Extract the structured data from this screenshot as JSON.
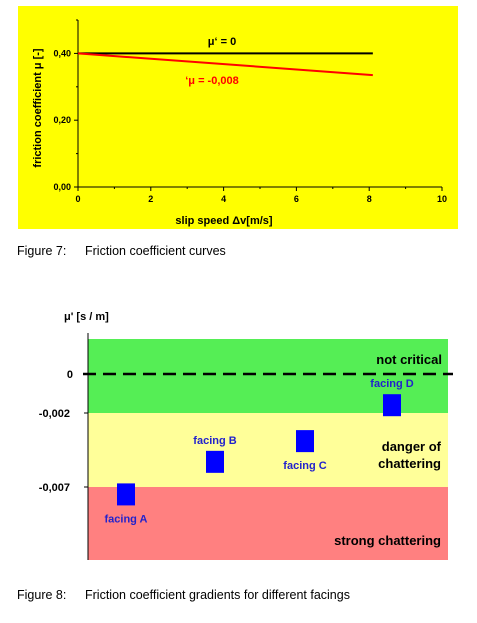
{
  "chart_data": [
    {
      "type": "line",
      "title": "",
      "xlabel": "slip speed Δv[m/s]",
      "ylabel": "friction coefficient μ [-]",
      "xlim": [
        0,
        10
      ],
      "ylim": [
        0,
        0.5
      ],
      "x_ticks": [
        "0",
        "2",
        "4",
        "6",
        "8",
        "10"
      ],
      "y_ticks": [
        "0,00",
        "0,20",
        "0,40"
      ],
      "grid": false,
      "background": "#ffff00",
      "series": [
        {
          "name": "μ‘ = 0",
          "color": "#000000",
          "x": [
            0,
            8.1
          ],
          "y": [
            0.4,
            0.4
          ]
        },
        {
          "name": "‘μ = -0,008",
          "color": "#ff0000",
          "x": [
            0,
            8.1
          ],
          "y": [
            0.4,
            0.335
          ]
        }
      ]
    },
    {
      "type": "scatter",
      "title": "",
      "ylabel": "μ' [s / m]",
      "y_ticks": [
        "0",
        "-0,002",
        "-0,007"
      ],
      "grid": false,
      "regions": [
        {
          "label": "not critical",
          "color": "#55ee55"
        },
        {
          "label": "danger of chattering",
          "color": "#ffff99"
        },
        {
          "label": "strong chattering",
          "color": "#ff8080"
        }
      ],
      "zero_line_style": "dashed",
      "marker_color": "#0000ff",
      "points": [
        {
          "label": "facing A",
          "y": -0.0075
        },
        {
          "label": "facing B",
          "y": -0.0053
        },
        {
          "label": "facing C",
          "y": -0.0039
        },
        {
          "label": "facing D",
          "y": -0.0016
        }
      ]
    }
  ],
  "captions": {
    "fig7_num": "Figure 7:",
    "fig7_text": "Friction coefficient curves",
    "fig8_num": "Figure 8:",
    "fig8_text": "Friction coefficient gradients for different facings"
  }
}
